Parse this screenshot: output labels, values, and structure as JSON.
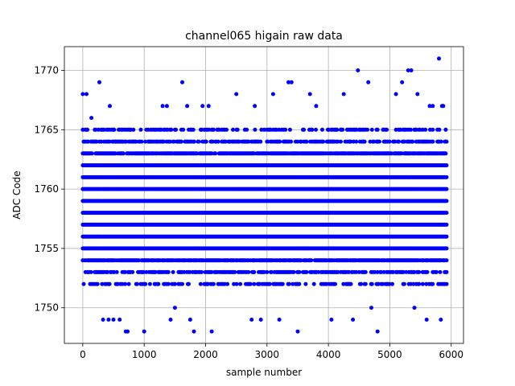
{
  "chart_data": {
    "type": "scatter",
    "title": "channel065 higain raw data",
    "xlabel": "sample number",
    "ylabel": "ADC Code",
    "xlim": [
      -300,
      6200
    ],
    "ylim": [
      1747,
      1772
    ],
    "xticks": [
      0,
      1000,
      2000,
      3000,
      4000,
      5000,
      6000
    ],
    "yticks": [
      1750,
      1755,
      1760,
      1765,
      1770
    ],
    "grid": true,
    "marker_color": "#0000ff",
    "n_samples": 5934,
    "dense_levels": [
      1752,
      1753,
      1754,
      1755,
      1756,
      1757,
      1758,
      1759,
      1760,
      1761,
      1762,
      1763,
      1764,
      1765
    ],
    "sparse_points": {
      "x": [
        0,
        60,
        140,
        270,
        330,
        420,
        440,
        500,
        600,
        700,
        730,
        1000,
        1300,
        1370,
        1430,
        1500,
        1620,
        1700,
        1750,
        1810,
        1950,
        2050,
        2100,
        2500,
        2750,
        2800,
        2900,
        3100,
        3200,
        3350,
        3400,
        3500,
        3700,
        3800,
        4050,
        4250,
        4400,
        4480,
        4650,
        4700,
        4800,
        5100,
        5200,
        5300,
        5350,
        5400,
        5450,
        5600,
        5650,
        5700,
        5800,
        5830,
        5850,
        5870
      ],
      "y": [
        1768,
        1768,
        1766,
        1769,
        1749,
        1749,
        1767,
        1749,
        1749,
        1748,
        1748,
        1748,
        1767,
        1767,
        1749,
        1750,
        1769,
        1767,
        1749,
        1748,
        1767,
        1767,
        1748,
        1768,
        1749,
        1767,
        1749,
        1768,
        1749,
        1769,
        1769,
        1748,
        1768,
        1767,
        1749,
        1768,
        1749,
        1770,
        1769,
        1750,
        1748,
        1768,
        1769,
        1770,
        1770,
        1750,
        1768,
        1749,
        1767,
        1767,
        1771,
        1749,
        1767,
        1767
      ]
    }
  }
}
